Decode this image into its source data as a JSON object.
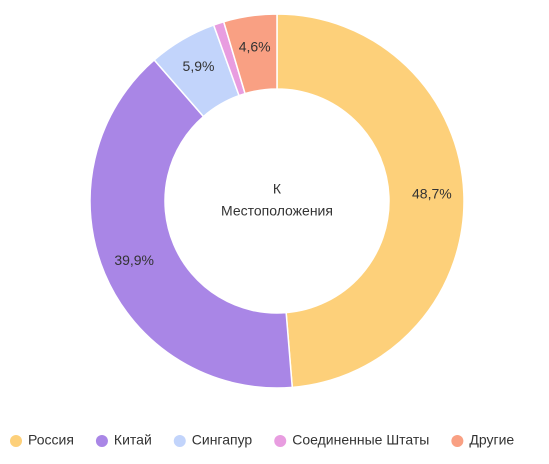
{
  "chart_data": {
    "type": "donut",
    "center_label": [
      "К",
      "Местоположения"
    ],
    "categories": [
      "Россия",
      "Китай",
      "Сингапур",
      "Соединенные Штаты",
      "Другие"
    ],
    "values": [
      48.7,
      39.9,
      5.9,
      0.9,
      4.6
    ],
    "value_labels": [
      "48,7%",
      "39,9%",
      "5,9%",
      null,
      "4,6%"
    ],
    "colors": [
      "#fdd07a",
      "#a986e6",
      "#c2d4fb",
      "#e89de0",
      "#f9a083"
    ],
    "legend": "bottom"
  }
}
